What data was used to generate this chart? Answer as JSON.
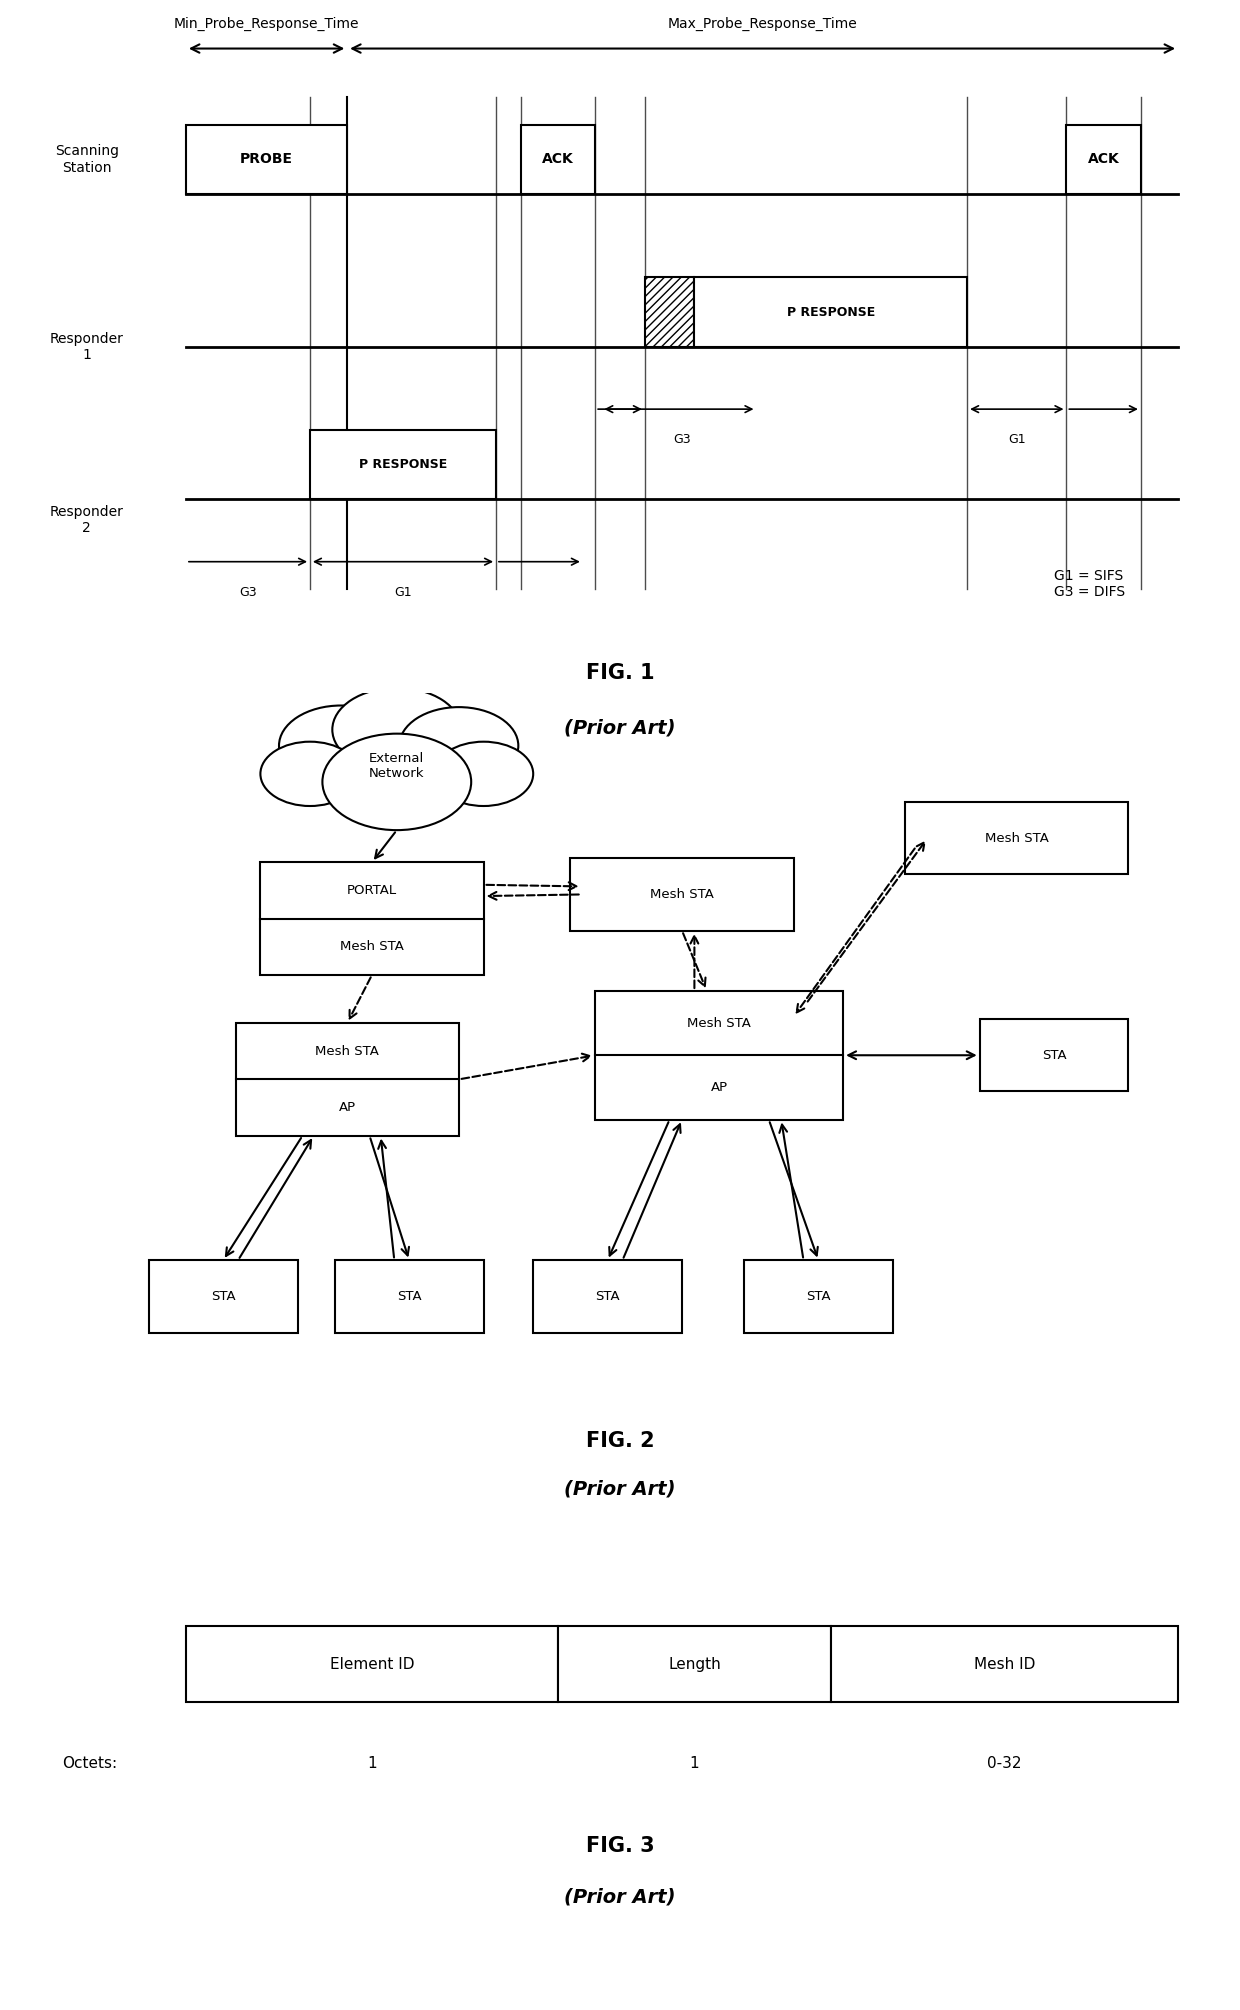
{
  "fig_width": 12.4,
  "fig_height": 20.1,
  "bg_color": "#ffffff",
  "fig1": {
    "title": "FIG. 1",
    "subtitle": "(Prior Art)",
    "g1_sifs": "G1 = SIFS",
    "g3_difs": "G3 = DIFS"
  },
  "fig2": {
    "title": "FIG. 2",
    "subtitle": "(Prior Art)"
  },
  "fig3": {
    "title": "FIG. 3",
    "subtitle": "(Prior Art)",
    "columns": [
      "Element ID",
      "Length",
      "Mesh ID"
    ],
    "octets": [
      "1",
      "1",
      "0-32"
    ]
  }
}
